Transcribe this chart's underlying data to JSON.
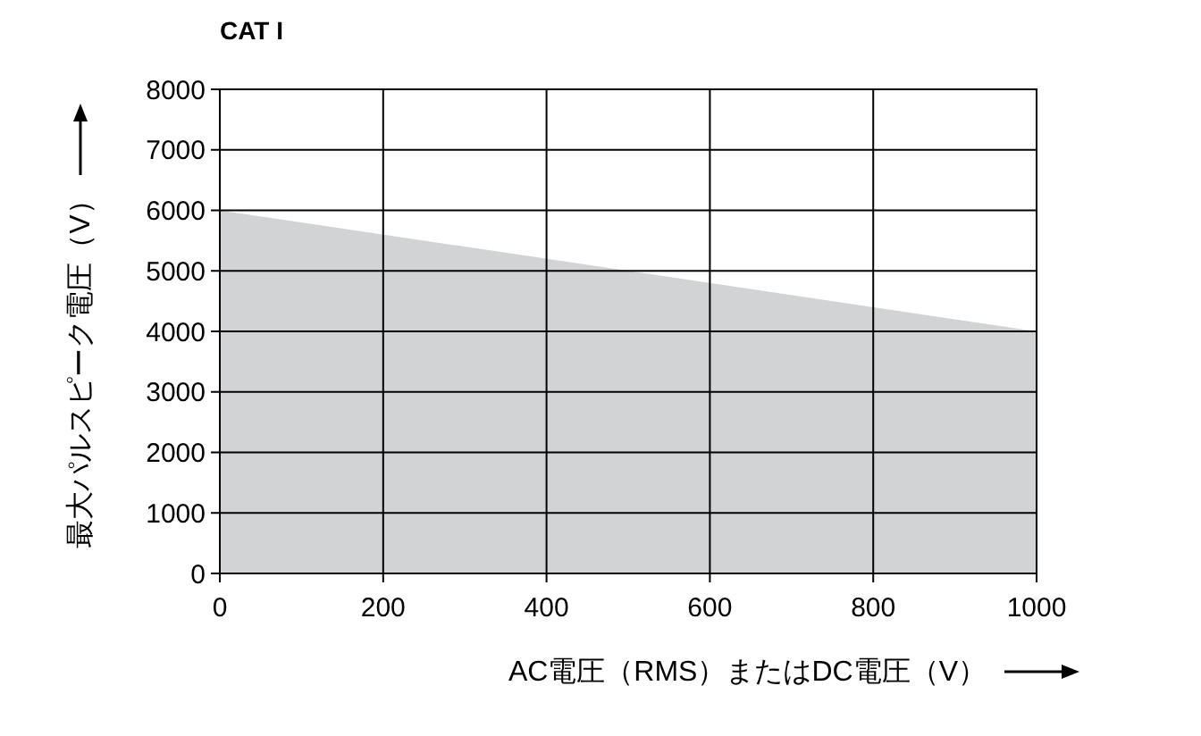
{
  "chart_data": {
    "type": "area",
    "title": "CAT I",
    "xlabel": "AC電圧（RMS）またはDC電圧（V）",
    "ylabel": "最大パルスピーク電圧（V）",
    "x": [
      0,
      1000
    ],
    "series": [
      {
        "color": "#d1d3d4",
        "values": [
          6000,
          4000
        ]
      }
    ],
    "xlim": [
      0,
      1000
    ],
    "xticks": [
      0,
      200,
      400,
      600,
      800,
      1000
    ],
    "ylim": [
      0,
      8000
    ],
    "yticks": [
      0,
      1000,
      2000,
      3000,
      4000,
      5000,
      6000,
      7000,
      8000
    ],
    "grid": true
  }
}
